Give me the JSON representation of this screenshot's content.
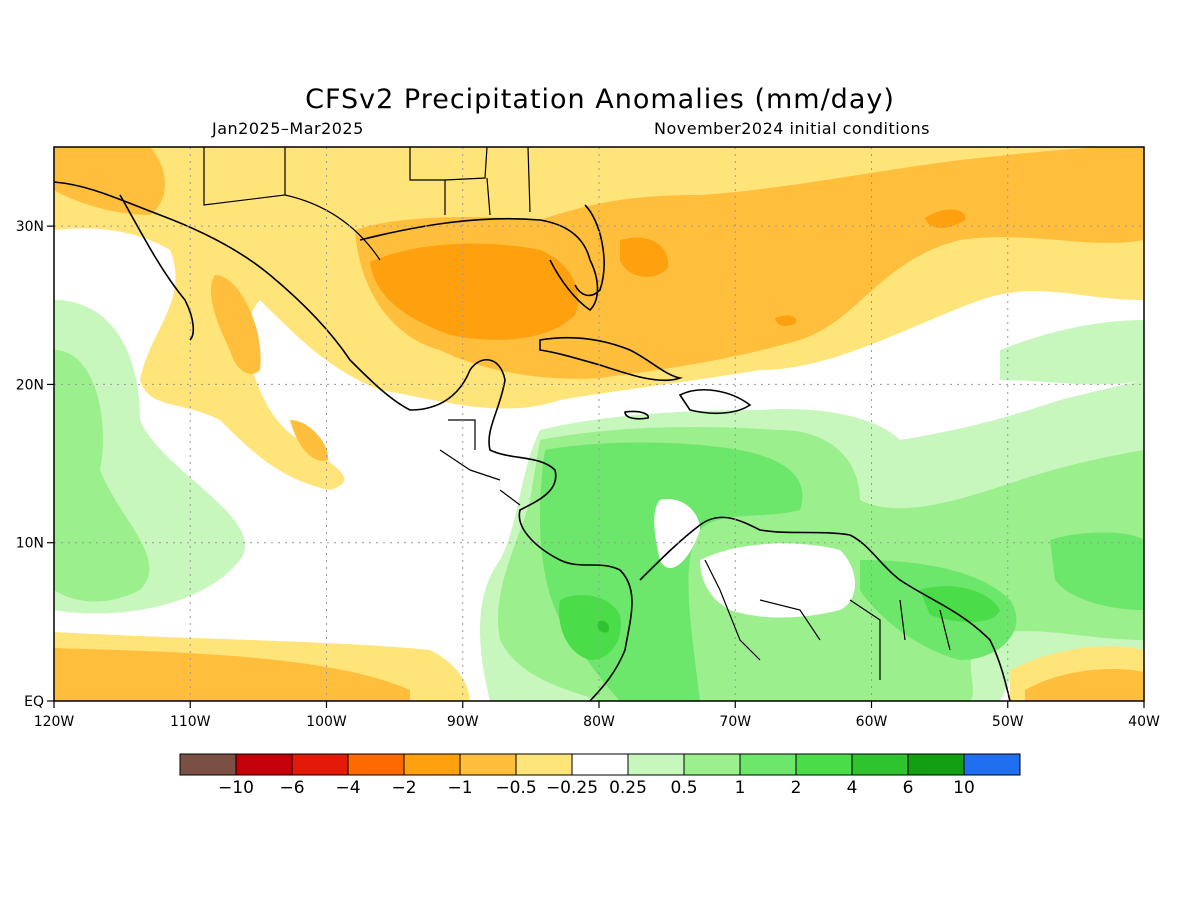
{
  "title": "CFSv2 Precipitation Anomalies (mm/day)",
  "subtitle_left": "Jan2025–Mar2025",
  "subtitle_right": "November2024 initial conditions",
  "map": {
    "lon_range": [
      -120,
      -40
    ],
    "lat_range": [
      0,
      35
    ],
    "x_ticks": [
      {
        "lon": -120,
        "label": "120W"
      },
      {
        "lon": -110,
        "label": "110W"
      },
      {
        "lon": -100,
        "label": "100W"
      },
      {
        "lon": -90,
        "label": "90W"
      },
      {
        "lon": -80,
        "label": "80W"
      },
      {
        "lon": -70,
        "label": "70W"
      },
      {
        "lon": -60,
        "label": "60W"
      },
      {
        "lon": -50,
        "label": "50W"
      },
      {
        "lon": -40,
        "label": "40W"
      }
    ],
    "y_ticks": [
      {
        "lat": 0,
        "label": "EQ"
      },
      {
        "lat": 10,
        "label": "10N"
      },
      {
        "lat": 20,
        "label": "20N"
      },
      {
        "lat": 30,
        "label": "30N"
      }
    ],
    "gridlines": "dotted"
  },
  "colorbar": {
    "colors": [
      "#7a4f44",
      "#c4000a",
      "#e31a0a",
      "#ff6a00",
      "#ffa00f",
      "#ffbe3c",
      "#ffe47a",
      "#ffffff",
      "#c8f7be",
      "#9bef8c",
      "#6ce66b",
      "#4bdc4a",
      "#2fc42f",
      "#12a012",
      "#1f6ff0"
    ],
    "labels": [
      "−10",
      "−6",
      "−4",
      "−2",
      "−1",
      "−0.5",
      "−0.25",
      "0.25",
      "0.5",
      "1",
      "2",
      "4",
      "6",
      "10"
    ]
  }
}
